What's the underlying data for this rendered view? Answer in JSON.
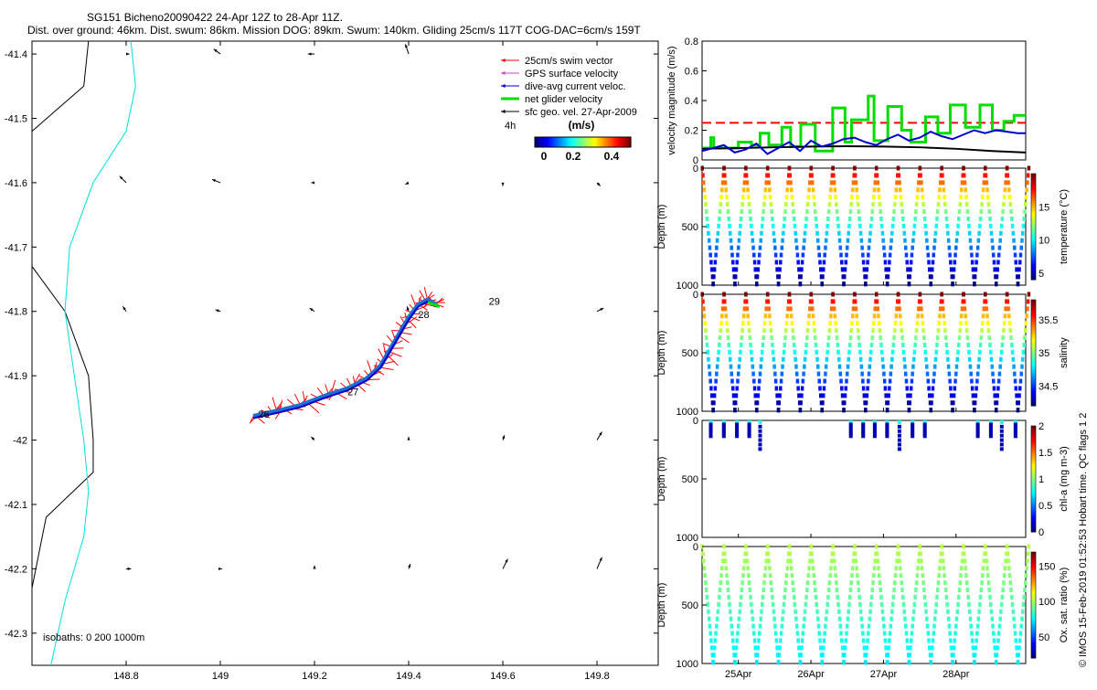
{
  "header": {
    "title_line1": "SG151 Bicheno20090422 24-Apr 12Z to 28-Apr 11Z.",
    "title_line2": "Dist. over ground: 46km. Dist. swum: 86km. Mission DOG: 89km. Swum: 140km. Gliding 25cm/s 117T COG-DAC=6cm/s 159T"
  },
  "colors": {
    "swim": "#ff0000",
    "gps": "#cc44cc",
    "dac": "#0000cc",
    "net": "#00dd00",
    "geo": "#000000",
    "isobath0": "#000000",
    "isobath200": "#00e0e0",
    "track": "#1f6fd0"
  },
  "chart_data": [
    {
      "type": "scatter",
      "name": "map",
      "title": "",
      "xlabel": "",
      "ylabel": "",
      "xlim": [
        148.6,
        149.93
      ],
      "ylim": [
        -42.35,
        -41.38
      ],
      "xticks": [
        148.8,
        149,
        149.2,
        149.4,
        149.6,
        149.8
      ],
      "yticks": [
        -41.4,
        -41.5,
        -41.6,
        -41.7,
        -41.8,
        -41.9,
        -42,
        -42.1,
        -42.2,
        -42.3
      ],
      "legend": [
        {
          "label": "25cm/s swim vector",
          "color": "#ff0000"
        },
        {
          "label": "GPS surface velocity",
          "color": "#cc44cc"
        },
        {
          "label": "dive-avg current veloc.",
          "color": "#0000cc"
        },
        {
          "label": "net glider velocity",
          "color": "#00dd00"
        },
        {
          "label": "sfc geo. vel. 27-Apr-2009",
          "color": "#000000"
        }
      ],
      "legend_note": "4h",
      "colorbar": {
        "label": "(m/s)",
        "ticks": [
          "0",
          "0.2",
          "0.4"
        ],
        "range": [
          0,
          0.5
        ]
      },
      "isobaths_note": "isobaths: 0   200  1000m",
      "day_labels": [
        {
          "text": "26",
          "x": 149.08,
          "y": -41.965
        },
        {
          "text": "27",
          "x": 149.27,
          "y": -41.93
        },
        {
          "text": "28",
          "x": 149.42,
          "y": -41.81
        },
        {
          "text": "29",
          "x": 149.57,
          "y": -41.79
        }
      ],
      "track": [
        [
          149.07,
          -41.963
        ],
        [
          149.12,
          -41.955
        ],
        [
          149.17,
          -41.946
        ],
        [
          149.22,
          -41.932
        ],
        [
          149.27,
          -41.92
        ],
        [
          149.31,
          -41.905
        ],
        [
          149.34,
          -41.885
        ],
        [
          149.36,
          -41.86
        ],
        [
          149.38,
          -41.835
        ],
        [
          149.4,
          -41.81
        ],
        [
          149.42,
          -41.79
        ],
        [
          149.44,
          -41.782
        ],
        [
          149.46,
          -41.79
        ]
      ],
      "isobath_0": [
        [
          148.72,
          -41.38
        ],
        [
          148.71,
          -41.45
        ],
        [
          148.6,
          -41.52
        ],
        [
          148.6,
          -41.73
        ],
        [
          148.67,
          -41.8
        ],
        [
          148.72,
          -41.9
        ],
        [
          148.73,
          -42.0
        ],
        [
          148.73,
          -42.05
        ],
        [
          148.63,
          -42.12
        ],
        [
          148.6,
          -42.23
        ]
      ],
      "isobath_200": [
        [
          148.81,
          -41.38
        ],
        [
          148.82,
          -41.45
        ],
        [
          148.8,
          -41.52
        ],
        [
          148.73,
          -41.6
        ],
        [
          148.68,
          -41.7
        ],
        [
          148.67,
          -41.8
        ],
        [
          148.69,
          -41.9
        ],
        [
          148.71,
          -42.0
        ],
        [
          148.72,
          -42.08
        ],
        [
          148.71,
          -42.15
        ],
        [
          148.67,
          -42.25
        ],
        [
          148.64,
          -42.35
        ]
      ],
      "geo_grid": {
        "lons": [
          148.8,
          149.0,
          149.2,
          149.4,
          149.6,
          149.8
        ],
        "lats": [
          -41.4,
          -41.6,
          -41.8,
          -42.0,
          -42.2
        ],
        "u": [
          [
            0.02,
            -0.04,
            -0.04,
            -0.02,
            0.0,
            0.0
          ],
          [
            -0.04,
            -0.05,
            -0.02,
            -0.02,
            0.0,
            0.02
          ],
          [
            -0.02,
            -0.03,
            -0.03,
            -0.01,
            0.0,
            0.04
          ],
          [
            0.0,
            0.0,
            -0.02,
            0.0,
            0.01,
            0.03
          ],
          [
            0.03,
            0.01,
            0.0,
            0.01,
            0.03,
            0.03
          ]
        ],
        "v": [
          [
            0.0,
            0.03,
            0.0,
            0.06,
            0.0,
            0.0
          ],
          [
            0.04,
            0.02,
            0.0,
            -0.01,
            -0.02,
            -0.02
          ],
          [
            0.03,
            0.01,
            0.02,
            0.03,
            0.0,
            0.02
          ],
          [
            0.0,
            0.0,
            0.02,
            0.02,
            0.03,
            0.05
          ],
          [
            0.0,
            0.0,
            0.02,
            0.03,
            0.06,
            0.07
          ]
        ]
      }
    },
    {
      "type": "line",
      "name": "velocity",
      "title": "",
      "xlabel": "",
      "ylabel": "velocity magnitude (m/s)",
      "ylim": [
        0,
        0.8
      ],
      "yticks": [
        "0",
        "0.2",
        "0.4",
        "0.6",
        "0.8"
      ],
      "xlim": [
        24.5,
        28.96
      ],
      "series": [
        {
          "name": "swim",
          "color": "#ff0000",
          "dashed": true,
          "x": [
            24.5,
            28.96
          ],
          "y": [
            0.25,
            0.25
          ]
        },
        {
          "name": "net",
          "color": "#00dd00",
          "x": [
            24.5,
            24.62,
            24.62,
            24.66,
            24.66,
            25.0,
            25.0,
            25.18,
            25.18,
            25.3,
            25.3,
            25.42,
            25.42,
            25.6,
            25.6,
            25.72,
            25.72,
            25.86,
            25.86,
            26.06,
            26.06,
            26.3,
            26.3,
            26.47,
            26.47,
            26.56,
            26.56,
            26.79,
            26.79,
            26.87,
            26.87,
            27.06,
            27.06,
            27.25,
            27.25,
            27.38,
            27.38,
            27.58,
            27.58,
            27.75,
            27.75,
            27.92,
            27.92,
            28.13,
            28.13,
            28.33,
            28.33,
            28.5,
            28.5,
            28.66,
            28.66,
            28.8,
            28.8,
            28.96
          ],
          "y": [
            0.08,
            0.08,
            0.15,
            0.15,
            0.08,
            0.08,
            0.12,
            0.12,
            0.1,
            0.1,
            0.18,
            0.18,
            0.1,
            0.1,
            0.22,
            0.22,
            0.09,
            0.09,
            0.24,
            0.24,
            0.06,
            0.06,
            0.35,
            0.35,
            0.12,
            0.12,
            0.27,
            0.27,
            0.43,
            0.43,
            0.13,
            0.13,
            0.36,
            0.36,
            0.2,
            0.2,
            0.12,
            0.12,
            0.29,
            0.29,
            0.18,
            0.18,
            0.37,
            0.37,
            0.22,
            0.22,
            0.37,
            0.37,
            0.2,
            0.2,
            0.26,
            0.26,
            0.3,
            0.3
          ]
        },
        {
          "name": "geo",
          "color": "#000000",
          "x": [
            24.5,
            25.0,
            25.5,
            26.0,
            26.5,
            27.0,
            27.5,
            28.0,
            28.5,
            28.96
          ],
          "y": [
            0.075,
            0.08,
            0.085,
            0.09,
            0.092,
            0.09,
            0.085,
            0.075,
            0.06,
            0.05
          ]
        },
        {
          "name": "dac",
          "color": "#0000cc",
          "x": [
            24.5,
            24.65,
            24.8,
            24.95,
            25.1,
            25.25,
            25.4,
            25.55,
            25.7,
            25.85,
            26.0,
            26.15,
            26.3,
            26.45,
            26.6,
            26.75,
            26.9,
            27.05,
            27.2,
            27.35,
            27.5,
            27.65,
            27.8,
            27.95,
            28.1,
            28.25,
            28.4,
            28.55,
            28.7,
            28.85,
            28.96
          ],
          "y": [
            0.06,
            0.08,
            0.1,
            0.05,
            0.07,
            0.11,
            0.04,
            0.08,
            0.12,
            0.06,
            0.13,
            0.09,
            0.11,
            0.14,
            0.15,
            0.12,
            0.1,
            0.14,
            0.17,
            0.13,
            0.15,
            0.19,
            0.16,
            0.14,
            0.17,
            0.2,
            0.18,
            0.2,
            0.19,
            0.18,
            0.18
          ]
        }
      ]
    },
    {
      "type": "scatter",
      "name": "temperature",
      "ylabel": "Depth (m)",
      "clabel": "temperature (°C)",
      "cticks": [
        "5",
        "10",
        "15"
      ],
      "crange": [
        4,
        20
      ],
      "ylim": [
        1000,
        0
      ],
      "yticks": [
        "0",
        "500",
        "1000"
      ],
      "dives": {
        "start": 24.5,
        "period": 0.3,
        "count": 15,
        "max_depth": 1000
      }
    },
    {
      "type": "scatter",
      "name": "salinity",
      "ylabel": "Depth (m)",
      "clabel": "salinity",
      "cticks": [
        "34.5",
        "35",
        "35.5"
      ],
      "crange": [
        34.2,
        35.8
      ],
      "ylim": [
        1000,
        0
      ],
      "yticks": [
        "0",
        "500",
        "1000"
      ],
      "dives": {
        "start": 24.5,
        "period": 0.3,
        "count": 15,
        "max_depth": 1000
      }
    },
    {
      "type": "scatter",
      "name": "chla",
      "ylabel": "Depth (m)",
      "clabel": "chl-a (mg m-3)",
      "cticks": [
        "0",
        "0.5",
        "1",
        "1.5",
        "2"
      ],
      "crange": [
        0,
        2
      ],
      "ylim": [
        1000,
        0
      ],
      "yticks": [
        "0",
        "500",
        "1000"
      ],
      "profiles_x": [
        24.62,
        24.8,
        24.98,
        25.15,
        25.3,
        26.55,
        26.72,
        26.88,
        27.05,
        27.22,
        27.4,
        27.57,
        28.3,
        28.48,
        28.63,
        28.82
      ]
    },
    {
      "type": "scatter",
      "name": "oxygen",
      "ylabel": "Depth (m)",
      "clabel": "Ox. sat. ratio (%)",
      "cticks": [
        "50",
        "100",
        "150"
      ],
      "crange": [
        20,
        170
      ],
      "ylim": [
        1000,
        0
      ],
      "yticks": [
        "0",
        "500",
        "1000"
      ],
      "xlabels": [
        "25Apr",
        "26Apr",
        "27Apr",
        "28Apr"
      ],
      "xtick_vals": [
        25,
        26,
        27,
        28
      ],
      "dives": {
        "start": 24.5,
        "period": 0.3,
        "count": 15,
        "max_depth": 1000
      }
    }
  ],
  "footer": {
    "credit": "© IMOS 15-Feb-2019 01:52:53 Hobart time. QC flags 1  2"
  }
}
